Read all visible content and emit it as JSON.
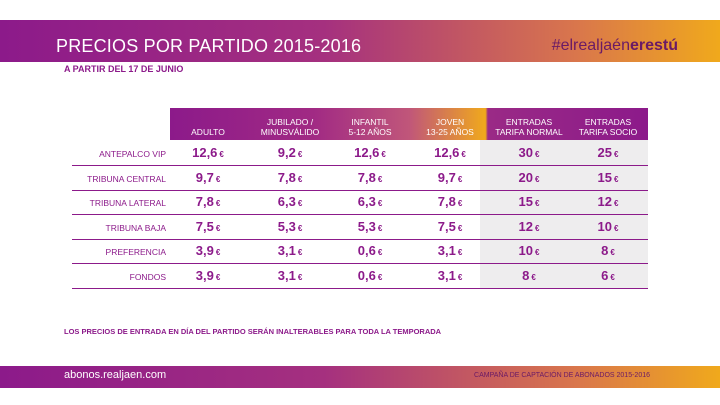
{
  "header": {
    "title": "PRECIOS POR PARTIDO 2015-2016",
    "hashtag_pre": "#elrealjaén",
    "hashtag_bold": "erestú",
    "subtitle": "A PARTIR DEL 17 DE JUNIO"
  },
  "colors": {
    "primary": "#8c1a8a",
    "accent": "#f0a91c",
    "gray_bg": "#eeedee"
  },
  "table": {
    "columns": [
      {
        "line1": "",
        "line2": "ADULTO"
      },
      {
        "line1": "JUBILADO /",
        "line2": "MINUSVÁLIDO"
      },
      {
        "line1": "INFANTIL",
        "line2": "5-12 AÑOS"
      },
      {
        "line1": "JOVEN",
        "line2": "13-25 AÑOS"
      },
      {
        "line1": "ENTRADAS",
        "line2": "TARIFA NORMAL"
      },
      {
        "line1": "ENTRADAS",
        "line2": "TARIFA SOCIO"
      }
    ],
    "currency": "€",
    "rows": [
      {
        "label": "ANTEPALCO VIP",
        "values": [
          "12,6",
          "9,2",
          "12,6",
          "12,6",
          "30",
          "25"
        ]
      },
      {
        "label": "TRIBUNA CENTRAL",
        "values": [
          "9,7",
          "7,8",
          "7,8",
          "9,7",
          "20",
          "15"
        ]
      },
      {
        "label": "TRIBUNA LATERAL",
        "values": [
          "7,8",
          "6,3",
          "6,3",
          "7,8",
          "15",
          "12"
        ]
      },
      {
        "label": "TRIBUNA BAJA",
        "values": [
          "7,5",
          "5,3",
          "5,3",
          "7,5",
          "12",
          "10"
        ]
      },
      {
        "label": "PREFERENCIA",
        "values": [
          "3,9",
          "3,1",
          "0,6",
          "3,1",
          "10",
          "8"
        ]
      },
      {
        "label": "FONDOS",
        "values": [
          "3,9",
          "3,1",
          "0,6",
          "3,1",
          "8",
          "6"
        ]
      }
    ]
  },
  "note": "LOS PRECIOS DE ENTRADA EN DÍA DEL PARTIDO SERÁN INALTERABLES PARA TODA LA TEMPORADA",
  "footer": {
    "url": "abonos.realjaen.com",
    "campaign": "CAMPAÑA DE CAPTACIÓN DE ABONADOS 2015-2016"
  }
}
